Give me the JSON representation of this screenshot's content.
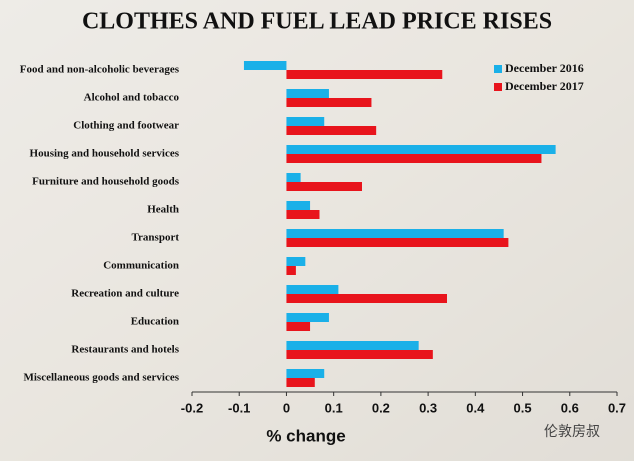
{
  "chart_data": {
    "type": "hbar",
    "title": "CLOTHES AND FUEL LEAD PRICE RISES",
    "categories": [
      "Food and non-alcoholic beverages",
      "Alcohol and tobacco",
      "Clothing and footwear",
      "Housing and household services",
      "Furniture and household goods",
      "Health",
      "Transport",
      "Communication",
      "Recreation and culture",
      "Education",
      "Restaurants and hotels",
      "Miscellaneous goods and services"
    ],
    "series": [
      {
        "name": "December 2016",
        "color": "#1ab0e8",
        "values": [
          -0.09,
          0.09,
          0.08,
          0.57,
          0.03,
          0.05,
          0.46,
          0.04,
          0.11,
          0.09,
          0.28,
          0.08
        ]
      },
      {
        "name": "December 2017",
        "color": "#e8141c",
        "values": [
          0.33,
          0.18,
          0.19,
          0.54,
          0.16,
          0.07,
          0.47,
          0.02,
          0.34,
          0.05,
          0.31,
          0.06
        ]
      }
    ],
    "xlim": [
      -0.2,
      0.7
    ],
    "xticks": [
      -0.2,
      -0.1,
      0,
      0.1,
      0.2,
      0.3,
      0.4,
      0.5,
      0.6,
      0.7
    ],
    "xlabel": "% change",
    "legend": "top-right",
    "watermark": "伦敦房叔"
  }
}
